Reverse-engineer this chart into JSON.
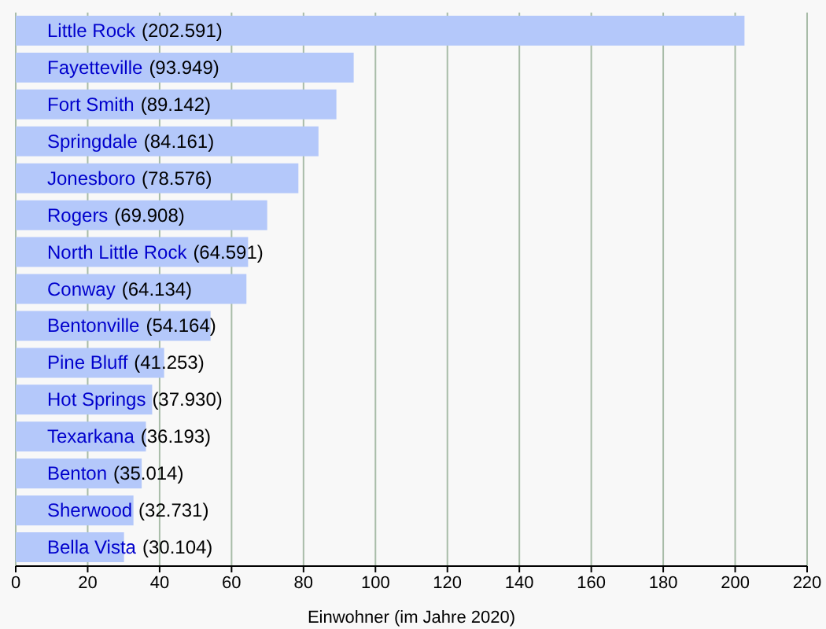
{
  "chart_data": {
    "type": "bar",
    "orientation": "horizontal",
    "xlabel": "Einwohner (im Jahre 2020)",
    "categories": [
      "Little Rock",
      "Fayetteville",
      "Fort Smith",
      "Springdale",
      "Jonesboro",
      "Rogers",
      "North Little Rock",
      "Conway",
      "Bentonville",
      "Pine Bluff",
      "Hot Springs",
      "Texarkana",
      "Benton",
      "Sherwood",
      "Bella Vista"
    ],
    "values": [
      202.591,
      93.949,
      89.142,
      84.161,
      78.576,
      69.908,
      64.591,
      64.134,
      54.164,
      41.253,
      37.93,
      36.193,
      35.014,
      32.731,
      30.104
    ],
    "value_labels": [
      "(202.591)",
      "(93.949)",
      "(89.142)",
      "(84.161)",
      "(78.576)",
      "(69.908)",
      "(64.591)",
      "(64.134)",
      "(54.164)",
      "(41.253)",
      "(37.930)",
      "(36.193)",
      "(35.014)",
      "(32.731)",
      "(30.104)"
    ],
    "color": "#b4c8fa",
    "xlim": [
      0,
      220
    ],
    "xticks": [
      0,
      20,
      40,
      60,
      80,
      100,
      120,
      140,
      160,
      180,
      200,
      220
    ],
    "grid": "x"
  }
}
